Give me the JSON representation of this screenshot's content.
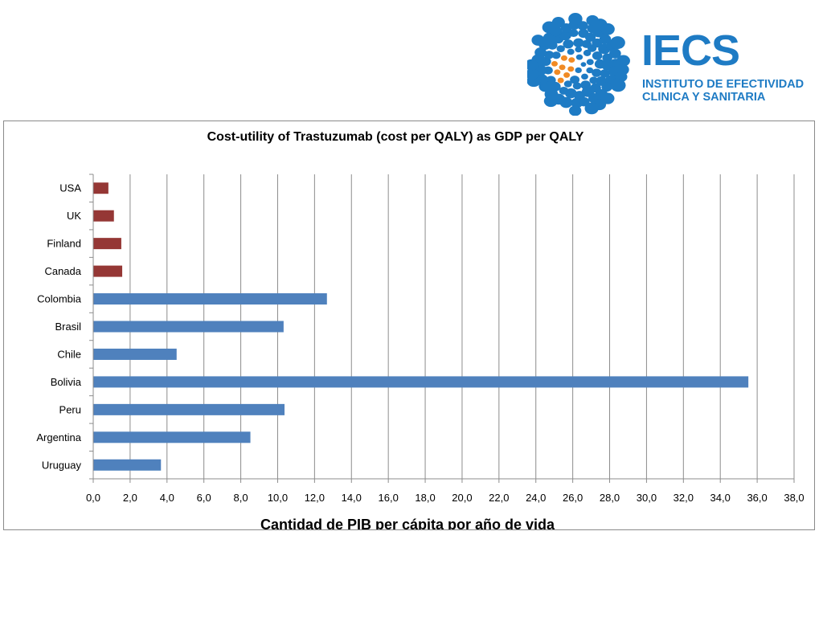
{
  "logo": {
    "name": "IECS",
    "subtitle_line1": "INSTITUTO DE EFECTIVIDAD",
    "subtitle_line2": "CLINICA Y SANITARIA",
    "colors": {
      "blue": "#1e7bc4",
      "orange": "#f08a24"
    }
  },
  "chart_data": {
    "type": "bar",
    "orientation": "horizontal",
    "title": "Cost-utility of Trastuzumab (cost per QALY) as GDP per QALY",
    "xlabel": "Cantidad de PIB per cápita por año de vida",
    "ylabel": "",
    "xlim": [
      0,
      38
    ],
    "xticks": [
      "0,0",
      "2,0",
      "4,0",
      "6,0",
      "8,0",
      "10,0",
      "12,0",
      "14,0",
      "16,0",
      "18,0",
      "20,0",
      "22,0",
      "24,0",
      "26,0",
      "28,0",
      "30,0",
      "32,0",
      "34,0",
      "36,0",
      "38,0"
    ],
    "grid": "vertical",
    "legend": "none",
    "categories": [
      "USA",
      "UK",
      "Finland",
      "Canada",
      "Colombia",
      "Brasil",
      "Chile",
      "Bolivia",
      "Peru",
      "Argentina",
      "Uruguay"
    ],
    "values": [
      0.8,
      1.1,
      1.5,
      1.55,
      12.65,
      10.3,
      4.5,
      35.5,
      10.35,
      8.5,
      3.65
    ],
    "bar_colors": [
      "#953735",
      "#953735",
      "#953735",
      "#953735",
      "#4f81bd",
      "#4f81bd",
      "#4f81bd",
      "#4f81bd",
      "#4f81bd",
      "#4f81bd",
      "#4f81bd"
    ]
  }
}
